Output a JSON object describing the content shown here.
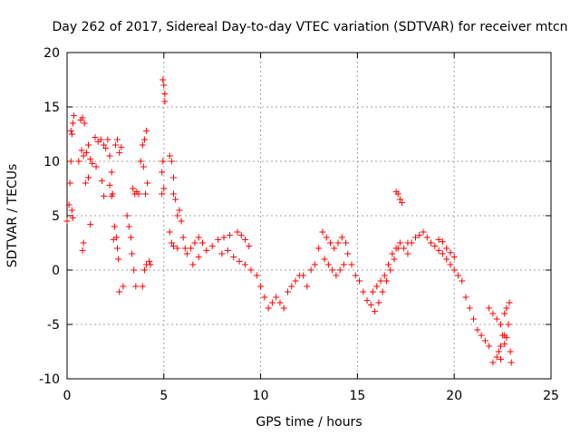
{
  "chart_data": {
    "type": "scatter",
    "title": "Day 262 of 2017, Sidereal Day-to-day VTEC variation (SDTVAR) for receiver mtcn",
    "xlabel": "GPS time / hours",
    "ylabel": "SDTVAR / TECUs",
    "xlim": [
      0,
      25
    ],
    "ylim": [
      -10,
      20
    ],
    "xticks": [
      0,
      5,
      10,
      15,
      20,
      25
    ],
    "yticks": [
      -10,
      -5,
      0,
      5,
      10,
      15,
      20
    ],
    "grid": true,
    "marker": "+",
    "color": "#ff0000",
    "series": [
      {
        "name": "SDTVAR",
        "points": [
          [
            0.0,
            4.5
          ],
          [
            0.1,
            6.0
          ],
          [
            0.15,
            8.0
          ],
          [
            0.2,
            10.0
          ],
          [
            0.25,
            12.5
          ],
          [
            0.3,
            13.5
          ],
          [
            0.35,
            14.2
          ],
          [
            0.2,
            12.8
          ],
          [
            0.25,
            5.5
          ],
          [
            0.3,
            4.8
          ],
          [
            0.6,
            10.0
          ],
          [
            0.7,
            13.8
          ],
          [
            0.8,
            14.0
          ],
          [
            0.9,
            13.5
          ],
          [
            0.75,
            11.0
          ],
          [
            0.85,
            10.5
          ],
          [
            1.0,
            10.8
          ],
          [
            1.1,
            11.5
          ],
          [
            1.2,
            10.2
          ],
          [
            1.3,
            9.8
          ],
          [
            1.45,
            12.2
          ],
          [
            1.6,
            11.8
          ],
          [
            1.75,
            12.0
          ],
          [
            1.9,
            11.5
          ],
          [
            1.1,
            8.5
          ],
          [
            0.95,
            8.0
          ],
          [
            0.8,
            1.8
          ],
          [
            0.85,
            2.5
          ],
          [
            1.2,
            4.2
          ],
          [
            1.5,
            9.5
          ],
          [
            1.8,
            8.2
          ],
          [
            2.0,
            11.2
          ],
          [
            2.1,
            12.0
          ],
          [
            2.2,
            10.5
          ],
          [
            2.3,
            9.0
          ],
          [
            2.35,
            7.0
          ],
          [
            2.45,
            4.0
          ],
          [
            2.55,
            3.0
          ],
          [
            2.65,
            1.0
          ],
          [
            2.7,
            -2.0
          ],
          [
            2.5,
            11.5
          ],
          [
            2.6,
            12.0
          ],
          [
            2.7,
            10.8
          ],
          [
            2.8,
            11.3
          ],
          [
            1.9,
            6.8
          ],
          [
            2.2,
            7.8
          ],
          [
            2.3,
            6.8
          ],
          [
            2.4,
            2.8
          ],
          [
            2.6,
            2.0
          ],
          [
            2.9,
            -1.5
          ],
          [
            3.1,
            5.0
          ],
          [
            3.2,
            4.0
          ],
          [
            3.3,
            3.0
          ],
          [
            3.35,
            1.5
          ],
          [
            3.45,
            0.0
          ],
          [
            3.55,
            -1.5
          ],
          [
            3.4,
            7.5
          ],
          [
            3.5,
            7.0
          ],
          [
            3.6,
            7.2
          ],
          [
            3.7,
            7.0
          ],
          [
            3.8,
            10.0
          ],
          [
            3.9,
            11.5
          ],
          [
            4.0,
            12.0
          ],
          [
            4.1,
            12.8
          ],
          [
            3.95,
            9.5
          ],
          [
            4.05,
            7.0
          ],
          [
            4.15,
            8.0
          ],
          [
            3.9,
            -1.5
          ],
          [
            4.0,
            0.0
          ],
          [
            4.1,
            0.5
          ],
          [
            4.25,
            0.8
          ],
          [
            4.3,
            0.5
          ],
          [
            4.95,
            17.5
          ],
          [
            5.0,
            17.0
          ],
          [
            5.05,
            16.2
          ],
          [
            5.05,
            15.5
          ],
          [
            4.9,
            9.0
          ],
          [
            4.95,
            10.0
          ],
          [
            5.0,
            7.5
          ],
          [
            4.9,
            7.0
          ],
          [
            5.3,
            10.5
          ],
          [
            5.4,
            10.0
          ],
          [
            5.5,
            8.5
          ],
          [
            5.6,
            6.5
          ],
          [
            5.5,
            7.0
          ],
          [
            5.7,
            5.0
          ],
          [
            5.8,
            5.5
          ],
          [
            5.9,
            4.5
          ],
          [
            6.0,
            3.0
          ],
          [
            6.1,
            2.0
          ],
          [
            5.3,
            3.5
          ],
          [
            5.4,
            2.5
          ],
          [
            5.5,
            2.2
          ],
          [
            5.7,
            2.0
          ],
          [
            6.2,
            1.5
          ],
          [
            6.4,
            2.0
          ],
          [
            6.6,
            2.5
          ],
          [
            6.8,
            3.0
          ],
          [
            7.0,
            2.5
          ],
          [
            6.5,
            0.5
          ],
          [
            6.8,
            1.2
          ],
          [
            7.2,
            1.8
          ],
          [
            7.5,
            2.2
          ],
          [
            7.8,
            2.8
          ],
          [
            8.1,
            3.0
          ],
          [
            8.4,
            3.2
          ],
          [
            8.8,
            3.5
          ],
          [
            9.0,
            3.2
          ],
          [
            9.2,
            2.8
          ],
          [
            9.4,
            2.2
          ],
          [
            8.0,
            1.5
          ],
          [
            8.3,
            1.8
          ],
          [
            8.6,
            1.2
          ],
          [
            8.9,
            0.8
          ],
          [
            9.2,
            0.5
          ],
          [
            9.5,
            0.0
          ],
          [
            9.8,
            -0.5
          ],
          [
            10.0,
            -1.5
          ],
          [
            10.2,
            -2.5
          ],
          [
            10.4,
            -3.5
          ],
          [
            10.6,
            -3.0
          ],
          [
            10.8,
            -2.5
          ],
          [
            11.0,
            -3.0
          ],
          [
            11.2,
            -3.5
          ],
          [
            11.4,
            -2.0
          ],
          [
            11.6,
            -1.5
          ],
          [
            11.8,
            -1.0
          ],
          [
            12.0,
            -0.5
          ],
          [
            12.2,
            -0.5
          ],
          [
            12.4,
            -1.5
          ],
          [
            12.6,
            0.0
          ],
          [
            12.8,
            0.5
          ],
          [
            13.0,
            2.0
          ],
          [
            13.2,
            3.5
          ],
          [
            13.4,
            3.0
          ],
          [
            13.6,
            2.5
          ],
          [
            13.8,
            2.0
          ],
          [
            14.0,
            2.5
          ],
          [
            14.2,
            3.0
          ],
          [
            14.4,
            2.5
          ],
          [
            13.3,
            1.0
          ],
          [
            13.5,
            0.5
          ],
          [
            13.7,
            0.0
          ],
          [
            13.9,
            -0.5
          ],
          [
            14.1,
            0.0
          ],
          [
            14.3,
            0.5
          ],
          [
            14.5,
            1.5
          ],
          [
            14.7,
            0.5
          ],
          [
            14.9,
            -0.5
          ],
          [
            15.1,
            -1.0
          ],
          [
            15.3,
            -2.0
          ],
          [
            15.5,
            -2.8
          ],
          [
            15.7,
            -3.2
          ],
          [
            15.9,
            -3.8
          ],
          [
            16.1,
            -3.0
          ],
          [
            16.3,
            -2.0
          ],
          [
            16.5,
            -1.0
          ],
          [
            16.7,
            0.0
          ],
          [
            16.9,
            1.0
          ],
          [
            17.1,
            2.0
          ],
          [
            15.8,
            -2.0
          ],
          [
            16.0,
            -1.5
          ],
          [
            16.2,
            -1.0
          ],
          [
            16.4,
            -0.5
          ],
          [
            16.6,
            0.5
          ],
          [
            16.8,
            1.5
          ],
          [
            17.0,
            2.0
          ],
          [
            17.2,
            2.5
          ],
          [
            17.4,
            2.0
          ],
          [
            17.6,
            1.5
          ],
          [
            17.0,
            7.2
          ],
          [
            17.1,
            7.0
          ],
          [
            17.2,
            6.5
          ],
          [
            17.3,
            6.2
          ],
          [
            17.6,
            2.5
          ],
          [
            17.8,
            2.5
          ],
          [
            18.0,
            3.0
          ],
          [
            18.2,
            3.2
          ],
          [
            18.4,
            3.5
          ],
          [
            18.6,
            3.0
          ],
          [
            18.8,
            2.5
          ],
          [
            19.0,
            2.2
          ],
          [
            19.2,
            1.8
          ],
          [
            19.4,
            1.5
          ],
          [
            19.6,
            1.0
          ],
          [
            19.8,
            0.5
          ],
          [
            20.0,
            0.0
          ],
          [
            20.2,
            -0.5
          ],
          [
            20.4,
            -1.0
          ],
          [
            20.6,
            -2.5
          ],
          [
            20.8,
            -3.5
          ],
          [
            21.0,
            -4.5
          ],
          [
            21.2,
            -5.5
          ],
          [
            21.4,
            -6.0
          ],
          [
            21.6,
            -6.5
          ],
          [
            21.8,
            -7.0
          ],
          [
            22.0,
            -8.5
          ],
          [
            22.2,
            -8.0
          ],
          [
            22.4,
            -7.0
          ],
          [
            22.6,
            -6.0
          ],
          [
            21.8,
            -3.5
          ],
          [
            22.0,
            -4.0
          ],
          [
            22.2,
            -4.5
          ],
          [
            22.4,
            -5.0
          ],
          [
            22.6,
            -4.0
          ],
          [
            22.7,
            -3.5
          ],
          [
            22.8,
            -5.0
          ],
          [
            22.9,
            -7.5
          ],
          [
            22.95,
            -8.5
          ],
          [
            22.85,
            -3.0
          ],
          [
            22.5,
            -6.0
          ],
          [
            22.6,
            -6.8
          ],
          [
            22.7,
            -6.2
          ],
          [
            22.3,
            -7.5
          ],
          [
            22.4,
            -8.2
          ],
          [
            19.2,
            2.8
          ],
          [
            19.4,
            2.6
          ],
          [
            19.6,
            2.0
          ],
          [
            19.8,
            1.6
          ],
          [
            20.0,
            1.2
          ]
        ]
      }
    ]
  }
}
